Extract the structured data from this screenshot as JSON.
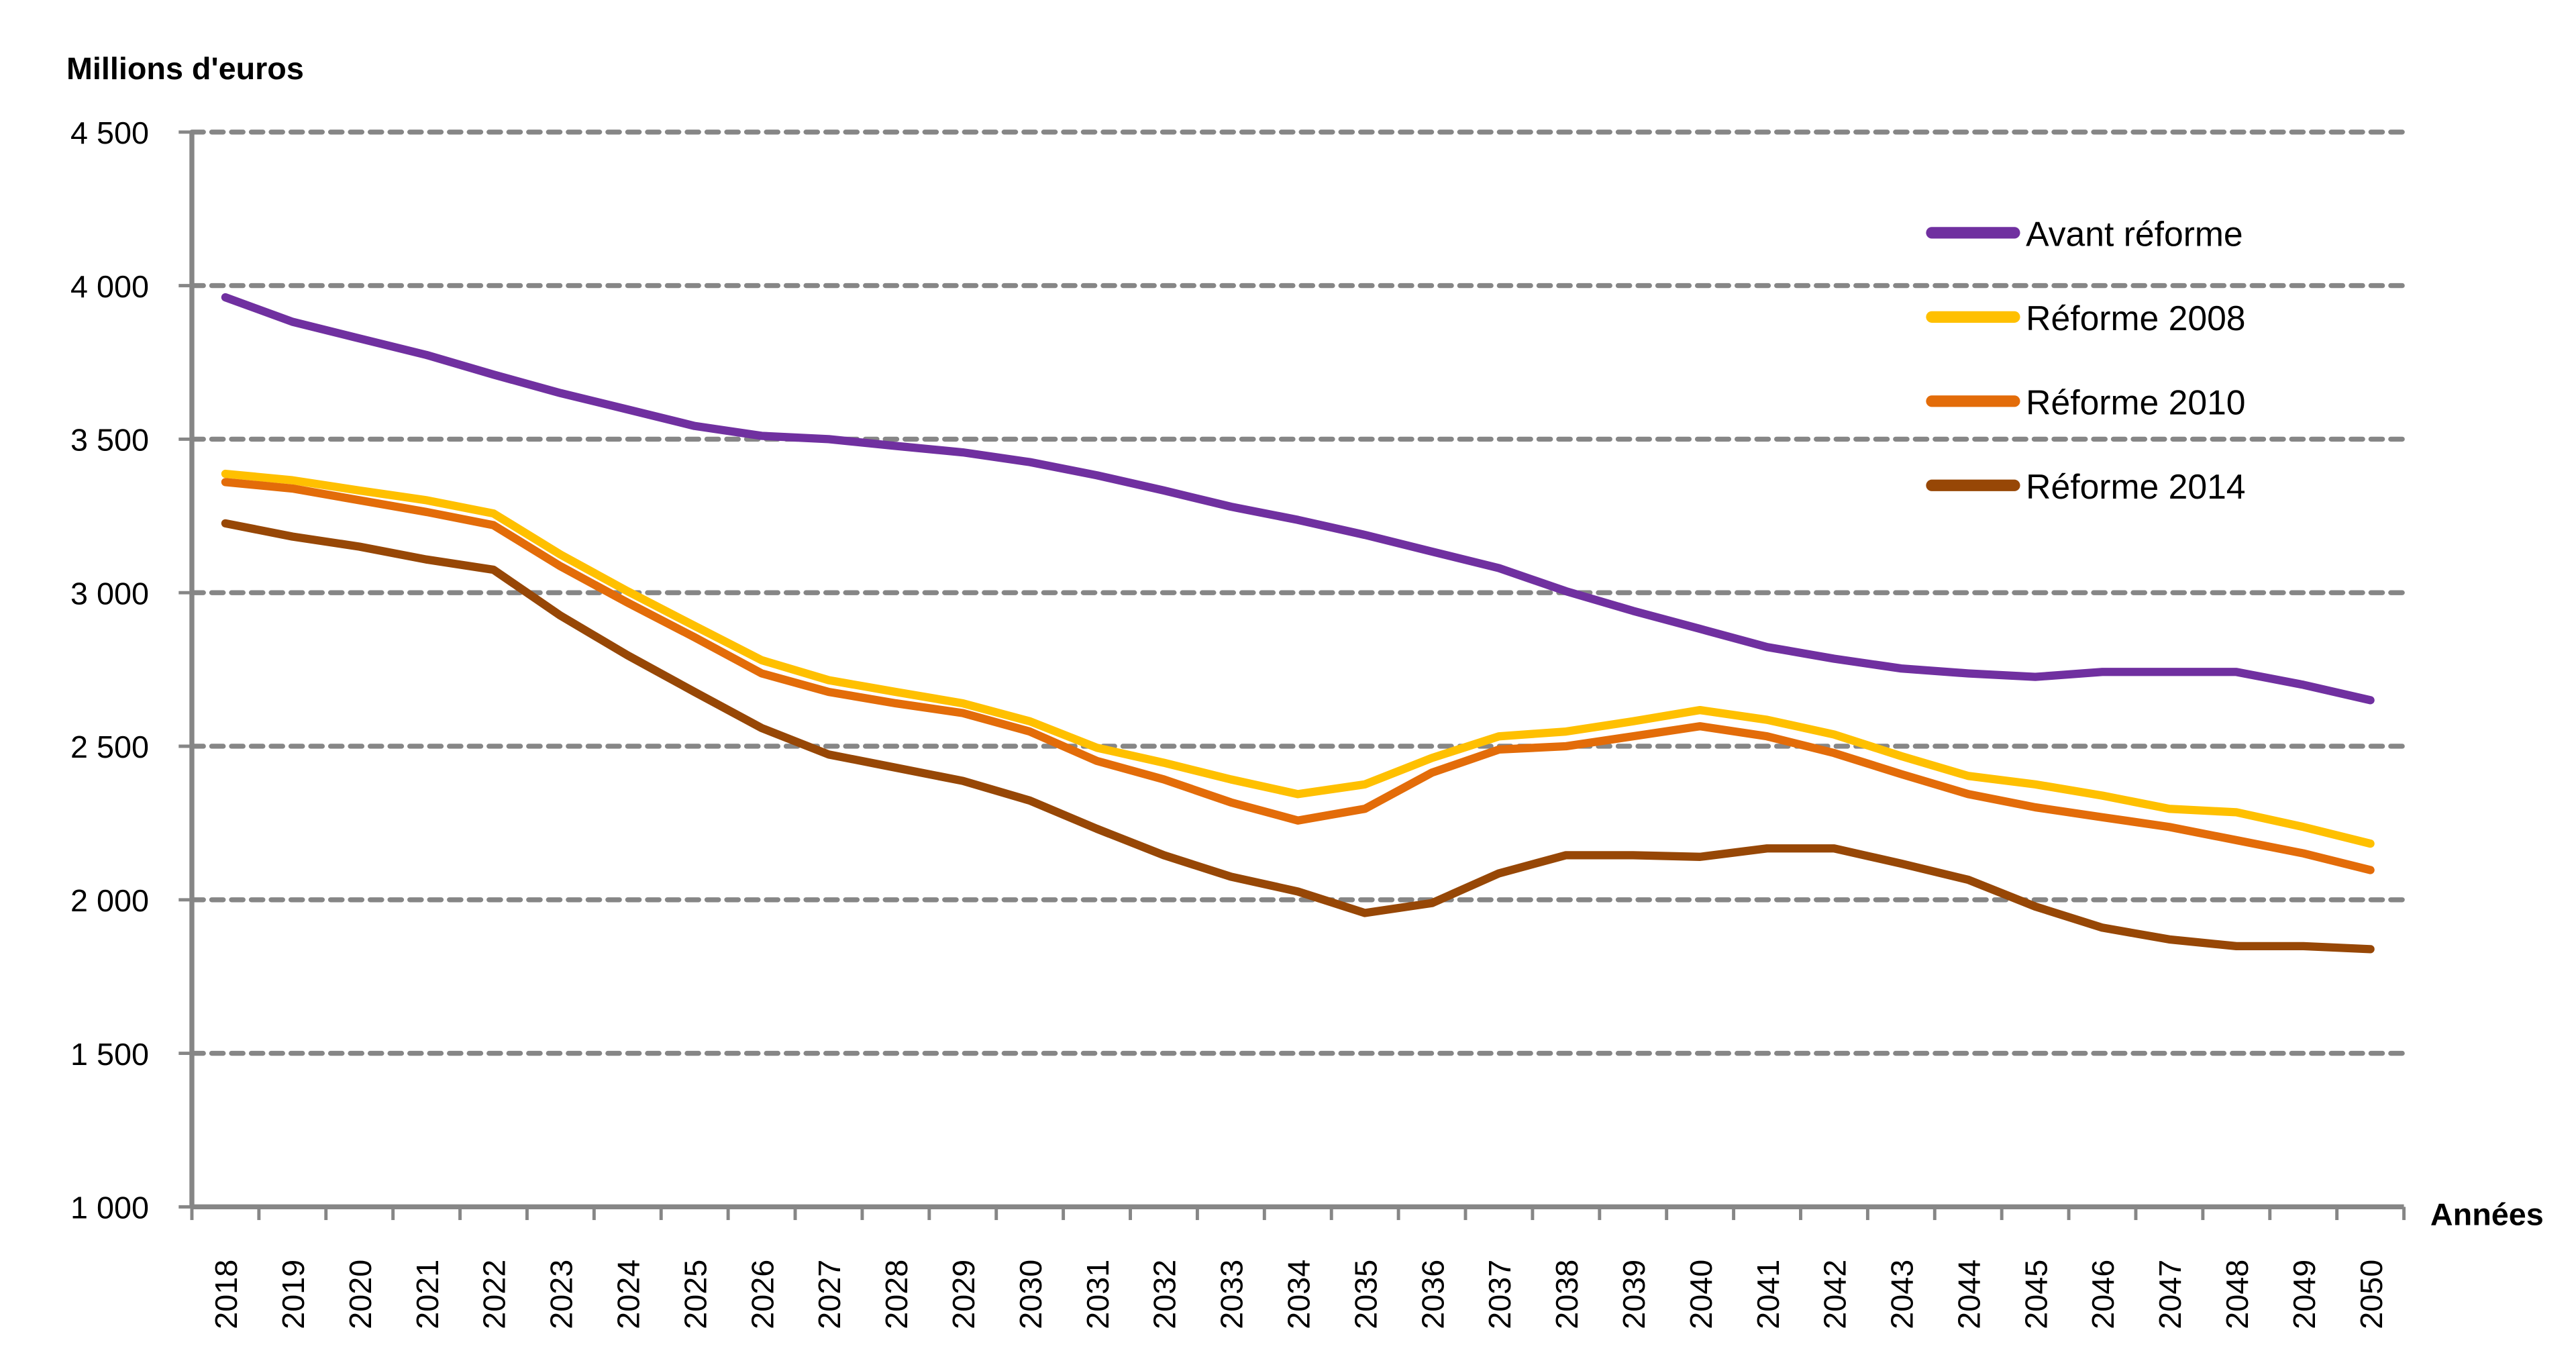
{
  "chart_data": {
    "type": "line",
    "title": "",
    "ylabel": "Millions d'euros",
    "xlabel": "Années",
    "ylim": [
      1000,
      4500
    ],
    "yticks": [
      1000,
      1500,
      2000,
      2500,
      3000,
      3500,
      4000,
      4500
    ],
    "ytick_labels": [
      "1 000",
      "1 500",
      "2 000",
      "2 500",
      "3 000",
      "3 500",
      "4 000",
      "4 500"
    ],
    "grid": "horizontal dashed",
    "legend_position": "top-right",
    "x": [
      2018,
      2019,
      2020,
      2021,
      2022,
      2023,
      2024,
      2025,
      2026,
      2027,
      2028,
      2029,
      2030,
      2031,
      2032,
      2033,
      2034,
      2035,
      2036,
      2037,
      2038,
      2039,
      2040,
      2041,
      2042,
      2043,
      2044,
      2045,
      2046,
      2047,
      2048,
      2049,
      2050
    ],
    "series": [
      {
        "name": "Avant réforme",
        "color": "#7030A0",
        "values": [
          3962,
          3882,
          3828,
          3774,
          3710,
          3650,
          3597,
          3543,
          3511,
          3500,
          3478,
          3457,
          3425,
          3382,
          3333,
          3280,
          3237,
          3188,
          3134,
          3080,
          3005,
          2941,
          2882,
          2823,
          2785,
          2753,
          2737,
          2726,
          2742,
          2742,
          2742,
          2700,
          2650
        ]
      },
      {
        "name": "Réforme 2008",
        "color": "#FFC000",
        "values": [
          3387,
          3366,
          3333,
          3301,
          3258,
          3124,
          3005,
          2892,
          2780,
          2715,
          2677,
          2640,
          2581,
          2495,
          2446,
          2392,
          2344,
          2376,
          2462,
          2532,
          2548,
          2581,
          2618,
          2586,
          2538,
          2468,
          2403,
          2376,
          2339,
          2296,
          2285,
          2237,
          2183
        ]
      },
      {
        "name": "Réforme 2010",
        "color": "#E36C09",
        "values": [
          3360,
          3339,
          3301,
          3263,
          3220,
          3086,
          2968,
          2855,
          2737,
          2677,
          2640,
          2608,
          2548,
          2452,
          2392,
          2317,
          2258,
          2296,
          2414,
          2489,
          2500,
          2532,
          2565,
          2532,
          2478,
          2409,
          2344,
          2301,
          2269,
          2237,
          2194,
          2151,
          2097
        ]
      },
      {
        "name": "Réforme 2014",
        "color": "#974706",
        "values": [
          3226,
          3183,
          3150,
          3108,
          3075,
          2925,
          2796,
          2677,
          2559,
          2473,
          2430,
          2387,
          2323,
          2231,
          2145,
          2075,
          2027,
          1957,
          1989,
          2086,
          2145,
          2145,
          2140,
          2167,
          2167,
          2118,
          2065,
          1978,
          1909,
          1871,
          1849,
          1849,
          1839
        ]
      }
    ]
  }
}
